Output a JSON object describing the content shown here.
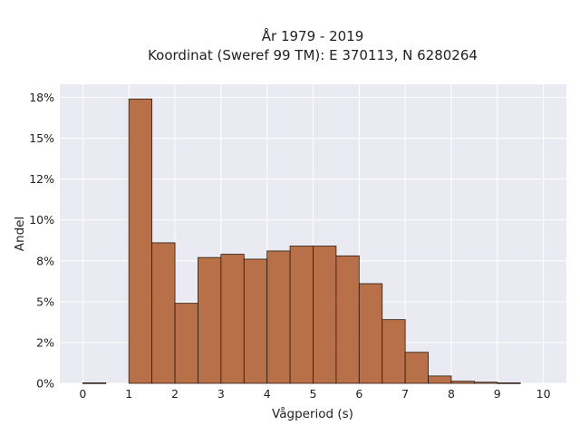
{
  "chart_data": {
    "type": "bar",
    "title_line1": "År 1979 - 2019",
    "title_line2": "Koordinat (Sweref 99 TM): E 370113, N 6280264",
    "xlabel": "Vågperiod (s)",
    "ylabel": "Andel",
    "xlim": [
      -0.5,
      10.5
    ],
    "ylim": [
      0,
      0.183
    ],
    "x_ticks": [
      0,
      1,
      2,
      3,
      4,
      5,
      6,
      7,
      8,
      9,
      10
    ],
    "x_tick_labels": [
      "0",
      "1",
      "2",
      "3",
      "4",
      "5",
      "6",
      "7",
      "8",
      "9",
      "10"
    ],
    "y_ticks": [
      0,
      0.025,
      0.05,
      0.075,
      0.1,
      0.125,
      0.15,
      0.175
    ],
    "y_tick_labels": [
      "0%",
      "2%",
      "5%",
      "8%",
      "10%",
      "12%",
      "15%",
      "18%"
    ],
    "grid": true,
    "background": "#EAEAF2",
    "bar_color": "#B5693E",
    "bar_edge_color": "#2B1A10",
    "bins": [
      {
        "x0": 0.0,
        "x1": 0.5,
        "value": 0.0003
      },
      {
        "x0": 0.5,
        "x1": 1.0,
        "value": 0.0
      },
      {
        "x0": 1.0,
        "x1": 1.5,
        "value": 0.174
      },
      {
        "x0": 1.5,
        "x1": 2.0,
        "value": 0.086
      },
      {
        "x0": 2.0,
        "x1": 2.5,
        "value": 0.049
      },
      {
        "x0": 2.5,
        "x1": 3.0,
        "value": 0.077
      },
      {
        "x0": 3.0,
        "x1": 3.5,
        "value": 0.079
      },
      {
        "x0": 3.5,
        "x1": 4.0,
        "value": 0.076
      },
      {
        "x0": 4.0,
        "x1": 4.5,
        "value": 0.081
      },
      {
        "x0": 4.5,
        "x1": 5.0,
        "value": 0.084
      },
      {
        "x0": 5.0,
        "x1": 5.5,
        "value": 0.084
      },
      {
        "x0": 5.5,
        "x1": 6.0,
        "value": 0.078
      },
      {
        "x0": 6.0,
        "x1": 6.5,
        "value": 0.061
      },
      {
        "x0": 6.5,
        "x1": 7.0,
        "value": 0.039
      },
      {
        "x0": 7.0,
        "x1": 7.5,
        "value": 0.019
      },
      {
        "x0": 7.5,
        "x1": 8.0,
        "value": 0.0045
      },
      {
        "x0": 8.0,
        "x1": 8.5,
        "value": 0.0013
      },
      {
        "x0": 8.5,
        "x1": 9.0,
        "value": 0.0007
      },
      {
        "x0": 9.0,
        "x1": 9.5,
        "value": 0.0003
      }
    ]
  }
}
